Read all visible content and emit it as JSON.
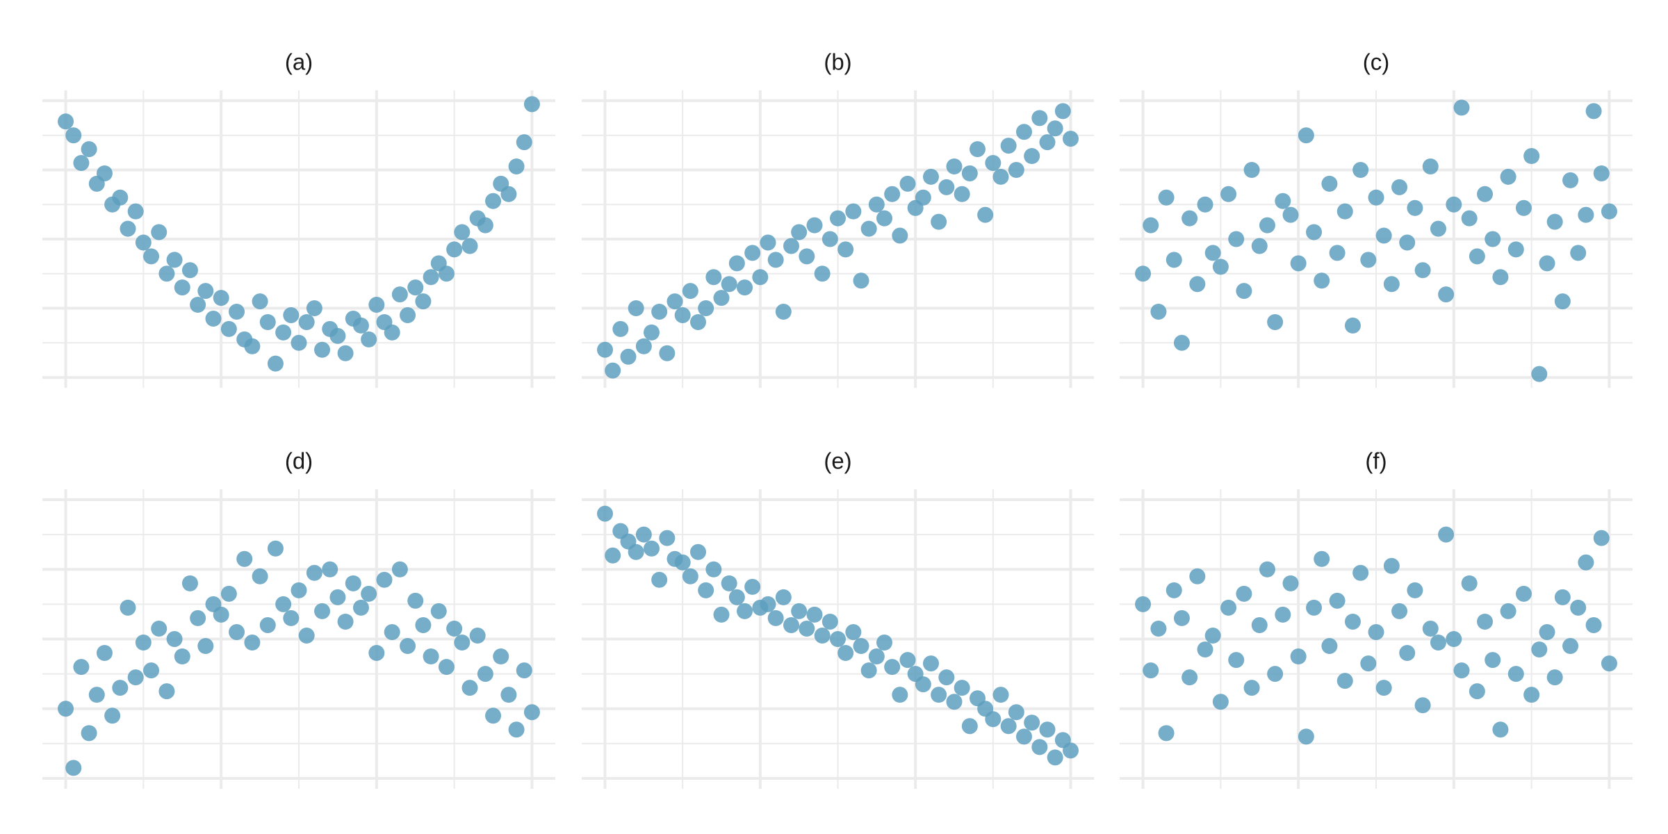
{
  "chart_data": [
    {
      "type": "scatter",
      "title": "(a)",
      "color": "#5e9fbe",
      "grid": true,
      "xlim": [
        -0.3,
        6.3
      ],
      "ylim": [
        -0.3,
        8.3
      ],
      "xticks": [
        0,
        1,
        2,
        3,
        4,
        5,
        6
      ],
      "yticks": [
        0,
        1,
        2,
        3,
        4,
        5,
        6,
        7,
        8
      ],
      "x": [
        0.0,
        0.1,
        0.2,
        0.3,
        0.4,
        0.5,
        0.6,
        0.7,
        0.8,
        0.9,
        1.0,
        1.1,
        1.2,
        1.3,
        1.4,
        1.5,
        1.6,
        1.7,
        1.8,
        1.9,
        2.0,
        2.1,
        2.2,
        2.3,
        2.4,
        2.5,
        2.6,
        2.7,
        2.8,
        2.9,
        3.0,
        3.1,
        3.2,
        3.3,
        3.4,
        3.5,
        3.6,
        3.7,
        3.8,
        3.9,
        4.0,
        4.1,
        4.2,
        4.3,
        4.4,
        4.5,
        4.6,
        4.7,
        4.8,
        4.9,
        5.0,
        5.1,
        5.2,
        5.3,
        5.4,
        5.5,
        5.6,
        5.7,
        5.8,
        5.9,
        6.0
      ],
      "values": [
        7.4,
        7.0,
        6.2,
        6.6,
        5.6,
        5.9,
        5.0,
        5.2,
        4.3,
        4.8,
        3.9,
        3.5,
        4.2,
        3.0,
        3.4,
        2.6,
        3.1,
        2.1,
        2.5,
        1.7,
        2.3,
        1.4,
        1.9,
        1.1,
        0.9,
        2.2,
        1.6,
        0.4,
        1.3,
        1.8,
        1.0,
        1.6,
        2.0,
        0.8,
        1.4,
        1.2,
        0.7,
        1.7,
        1.5,
        1.1,
        2.1,
        1.6,
        1.3,
        2.4,
        1.8,
        2.6,
        2.2,
        2.9,
        3.3,
        3.0,
        3.7,
        4.2,
        3.8,
        4.6,
        4.4,
        5.1,
        5.6,
        5.3,
        6.1,
        6.8,
        7.9
      ]
    },
    {
      "type": "scatter",
      "title": "(b)",
      "color": "#5e9fbe",
      "grid": true,
      "xlim": [
        -0.3,
        6.3
      ],
      "ylim": [
        -0.3,
        8.3
      ],
      "xticks": [
        0,
        1,
        2,
        3,
        4,
        5,
        6
      ],
      "yticks": [
        0,
        1,
        2,
        3,
        4,
        5,
        6,
        7,
        8
      ],
      "x": [
        0.0,
        0.1,
        0.2,
        0.3,
        0.4,
        0.5,
        0.6,
        0.7,
        0.8,
        0.9,
        1.0,
        1.1,
        1.2,
        1.3,
        1.4,
        1.5,
        1.6,
        1.7,
        1.8,
        1.9,
        2.0,
        2.1,
        2.2,
        2.3,
        2.4,
        2.5,
        2.6,
        2.7,
        2.8,
        2.9,
        3.0,
        3.1,
        3.2,
        3.3,
        3.4,
        3.5,
        3.6,
        3.7,
        3.8,
        3.9,
        4.0,
        4.1,
        4.2,
        4.3,
        4.4,
        4.5,
        4.6,
        4.7,
        4.8,
        4.9,
        5.0,
        5.1,
        5.2,
        5.3,
        5.4,
        5.5,
        5.6,
        5.7,
        5.8,
        5.9,
        6.0
      ],
      "values": [
        0.8,
        0.2,
        1.4,
        0.6,
        2.0,
        0.9,
        1.3,
        1.9,
        0.7,
        2.2,
        1.8,
        2.5,
        1.6,
        2.0,
        2.9,
        2.3,
        2.7,
        3.3,
        2.6,
        3.6,
        2.9,
        3.9,
        3.4,
        1.9,
        3.8,
        4.2,
        3.5,
        4.4,
        3.0,
        4.0,
        4.6,
        3.7,
        4.8,
        2.8,
        4.3,
        5.0,
        4.6,
        5.3,
        4.1,
        5.6,
        4.9,
        5.2,
        5.8,
        4.5,
        5.5,
        6.1,
        5.3,
        5.9,
        6.6,
        4.7,
        6.2,
        5.8,
        6.7,
        6.0,
        7.1,
        6.4,
        7.5,
        6.8,
        7.2,
        7.7,
        6.9
      ]
    },
    {
      "type": "scatter",
      "title": "(c)",
      "color": "#5e9fbe",
      "grid": true,
      "xlim": [
        -0.3,
        6.3
      ],
      "ylim": [
        -0.3,
        8.3
      ],
      "xticks": [
        0,
        1,
        2,
        3,
        4,
        5,
        6
      ],
      "yticks": [
        0,
        1,
        2,
        3,
        4,
        5,
        6,
        7,
        8
      ],
      "x": [
        0.0,
        0.1,
        0.2,
        0.3,
        0.4,
        0.5,
        0.6,
        0.7,
        0.8,
        0.9,
        1.0,
        1.1,
        1.2,
        1.3,
        1.4,
        1.5,
        1.6,
        1.7,
        1.8,
        1.9,
        2.0,
        2.1,
        2.2,
        2.3,
        2.4,
        2.5,
        2.6,
        2.7,
        2.8,
        2.9,
        3.0,
        3.1,
        3.2,
        3.3,
        3.4,
        3.5,
        3.6,
        3.7,
        3.8,
        3.9,
        4.0,
        4.1,
        4.2,
        4.3,
        4.4,
        4.5,
        4.6,
        4.7,
        4.8,
        4.9,
        5.0,
        5.1,
        5.2,
        5.3,
        5.4,
        5.5,
        5.6,
        5.7,
        5.8,
        5.9,
        6.0
      ],
      "values": [
        3.0,
        4.4,
        1.9,
        5.2,
        3.4,
        1.0,
        4.6,
        2.7,
        5.0,
        3.6,
        3.2,
        5.3,
        4.0,
        2.5,
        6.0,
        3.8,
        4.4,
        1.6,
        5.1,
        4.7,
        3.3,
        7.0,
        4.2,
        2.8,
        5.6,
        3.6,
        4.8,
        1.5,
        6.0,
        3.4,
        5.2,
        4.1,
        2.7,
        5.5,
        3.9,
        4.9,
        3.1,
        6.1,
        4.3,
        2.4,
        5.0,
        7.8,
        4.6,
        3.5,
        5.3,
        4.0,
        2.9,
        5.8,
        3.7,
        4.9,
        6.4,
        0.1,
        3.3,
        4.5,
        2.2,
        5.7,
        3.6,
        4.7,
        7.7,
        5.9,
        4.8
      ]
    },
    {
      "type": "scatter",
      "title": "(d)",
      "color": "#5e9fbe",
      "grid": true,
      "xlim": [
        -0.3,
        6.3
      ],
      "ylim": [
        -0.3,
        8.3
      ],
      "xticks": [
        0,
        1,
        2,
        3,
        4,
        5,
        6
      ],
      "yticks": [
        0,
        1,
        2,
        3,
        4,
        5,
        6,
        7,
        8
      ],
      "x": [
        0.0,
        0.1,
        0.2,
        0.3,
        0.4,
        0.5,
        0.6,
        0.7,
        0.8,
        0.9,
        1.0,
        1.1,
        1.2,
        1.3,
        1.4,
        1.5,
        1.6,
        1.7,
        1.8,
        1.9,
        2.0,
        2.1,
        2.2,
        2.3,
        2.4,
        2.5,
        2.6,
        2.7,
        2.8,
        2.9,
        3.0,
        3.1,
        3.2,
        3.3,
        3.4,
        3.5,
        3.6,
        3.7,
        3.8,
        3.9,
        4.0,
        4.1,
        4.2,
        4.3,
        4.4,
        4.5,
        4.6,
        4.7,
        4.8,
        4.9,
        5.0,
        5.1,
        5.2,
        5.3,
        5.4,
        5.5,
        5.6,
        5.7,
        5.8,
        5.9,
        6.0
      ],
      "values": [
        2.0,
        0.3,
        3.2,
        1.3,
        2.4,
        3.6,
        1.8,
        2.6,
        4.9,
        2.9,
        3.9,
        3.1,
        4.3,
        2.5,
        4.0,
        3.5,
        5.6,
        4.6,
        3.8,
        5.0,
        4.7,
        5.3,
        4.2,
        6.3,
        3.9,
        5.8,
        4.4,
        6.6,
        5.0,
        4.6,
        5.4,
        4.1,
        5.9,
        4.8,
        6.0,
        5.2,
        4.5,
        5.6,
        4.9,
        5.3,
        3.6,
        5.7,
        4.2,
        6.0,
        3.8,
        5.1,
        4.4,
        3.5,
        4.8,
        3.2,
        4.3,
        3.9,
        2.6,
        4.1,
        3.0,
        1.8,
        3.5,
        2.4,
        1.4,
        3.1,
        1.9
      ]
    },
    {
      "type": "scatter",
      "title": "(e)",
      "color": "#5e9fbe",
      "grid": true,
      "xlim": [
        -0.3,
        6.3
      ],
      "ylim": [
        -0.3,
        8.3
      ],
      "xticks": [
        0,
        1,
        2,
        3,
        4,
        5,
        6
      ],
      "yticks": [
        0,
        1,
        2,
        3,
        4,
        5,
        6,
        7,
        8
      ],
      "x": [
        0.0,
        0.1,
        0.2,
        0.3,
        0.4,
        0.5,
        0.6,
        0.7,
        0.8,
        0.9,
        1.0,
        1.1,
        1.2,
        1.3,
        1.4,
        1.5,
        1.6,
        1.7,
        1.8,
        1.9,
        2.0,
        2.1,
        2.2,
        2.3,
        2.4,
        2.5,
        2.6,
        2.7,
        2.8,
        2.9,
        3.0,
        3.1,
        3.2,
        3.3,
        3.4,
        3.5,
        3.6,
        3.7,
        3.8,
        3.9,
        4.0,
        4.1,
        4.2,
        4.3,
        4.4,
        4.5,
        4.6,
        4.7,
        4.8,
        4.9,
        5.0,
        5.1,
        5.2,
        5.3,
        5.4,
        5.5,
        5.6,
        5.7,
        5.8,
        5.9,
        6.0
      ],
      "values": [
        7.6,
        6.4,
        7.1,
        6.8,
        6.5,
        7.0,
        6.6,
        5.7,
        6.9,
        6.3,
        6.2,
        5.8,
        6.5,
        5.4,
        6.0,
        4.7,
        5.6,
        5.2,
        4.8,
        5.5,
        4.9,
        5.0,
        4.6,
        5.2,
        4.4,
        4.8,
        4.3,
        4.7,
        4.1,
        4.5,
        4.0,
        3.6,
        4.2,
        3.8,
        3.1,
        3.5,
        3.9,
        3.2,
        2.4,
        3.4,
        3.0,
        2.7,
        3.3,
        2.4,
        2.9,
        2.2,
        2.6,
        1.5,
        2.3,
        2.0,
        1.7,
        2.4,
        1.5,
        1.9,
        1.2,
        1.6,
        0.9,
        1.4,
        0.6,
        1.1,
        0.8
      ]
    },
    {
      "type": "scatter",
      "title": "(f)",
      "color": "#5e9fbe",
      "grid": true,
      "xlim": [
        -0.3,
        6.3
      ],
      "ylim": [
        -0.3,
        8.3
      ],
      "xticks": [
        0,
        1,
        2,
        3,
        4,
        5,
        6
      ],
      "yticks": [
        0,
        1,
        2,
        3,
        4,
        5,
        6,
        7,
        8
      ],
      "x": [
        0.0,
        0.1,
        0.2,
        0.3,
        0.4,
        0.5,
        0.6,
        0.7,
        0.8,
        0.9,
        1.0,
        1.1,
        1.2,
        1.3,
        1.4,
        1.5,
        1.6,
        1.7,
        1.8,
        1.9,
        2.0,
        2.1,
        2.2,
        2.3,
        2.4,
        2.5,
        2.6,
        2.7,
        2.8,
        2.9,
        3.0,
        3.1,
        3.2,
        3.3,
        3.4,
        3.5,
        3.6,
        3.7,
        3.8,
        3.9,
        4.0,
        4.1,
        4.2,
        4.3,
        4.4,
        4.5,
        4.6,
        4.7,
        4.8,
        4.9,
        5.0,
        5.1,
        5.2,
        5.3,
        5.4,
        5.5,
        5.6,
        5.7,
        5.8,
        5.9,
        6.0
      ],
      "values": [
        5.0,
        3.1,
        4.3,
        1.3,
        5.4,
        4.6,
        2.9,
        5.8,
        3.7,
        4.1,
        2.2,
        4.9,
        3.4,
        5.3,
        2.6,
        4.4,
        6.0,
        3.0,
        4.7,
        5.6,
        3.5,
        1.2,
        4.9,
        6.3,
        3.8,
        5.1,
        2.8,
        4.5,
        5.9,
        3.3,
        4.2,
        2.6,
        6.1,
        4.8,
        3.6,
        5.4,
        2.1,
        4.3,
        3.9,
        7.0,
        4.0,
        3.1,
        5.6,
        2.5,
        4.5,
        3.4,
        1.4,
        4.8,
        3.0,
        5.3,
        2.4,
        3.7,
        4.2,
        2.9,
        5.2,
        3.8,
        4.9,
        6.2,
        4.4,
        6.9,
        3.3
      ]
    }
  ]
}
